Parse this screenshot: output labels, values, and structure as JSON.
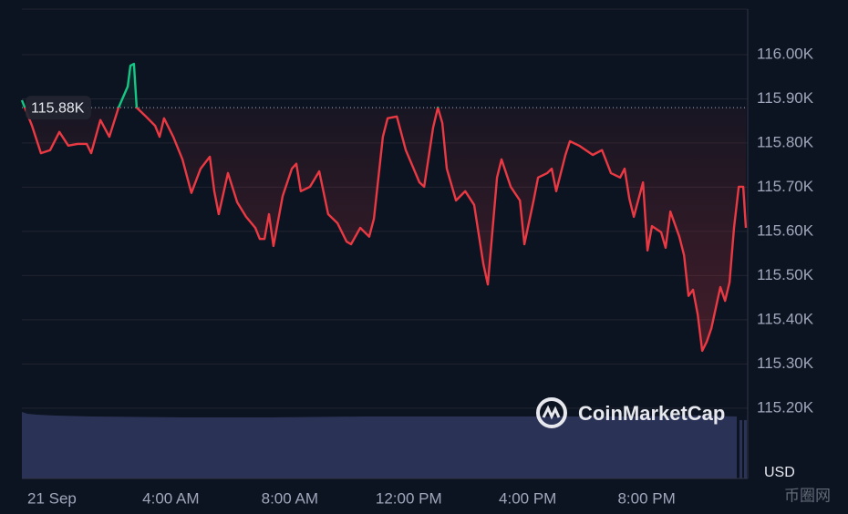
{
  "chart_data": {
    "type": "line",
    "x": [
      -1.01,
      -0.67,
      -0.37,
      -0.06,
      0.25,
      0.55,
      0.86,
      1.17,
      1.32,
      1.63,
      1.93,
      2.24,
      2.55,
      2.64,
      2.76,
      2.85,
      3.16,
      3.47,
      3.62,
      3.77,
      4.08,
      4.39,
      4.69,
      5.0,
      5.31,
      5.46,
      5.61,
      5.92,
      6.23,
      6.53,
      6.84,
      6.99,
      7.15,
      7.3,
      7.45,
      7.76,
      8.07,
      8.22,
      8.37,
      8.68,
      8.99,
      9.29,
      9.6,
      9.91,
      10.06,
      10.37,
      10.67,
      10.83,
      11.13,
      11.29,
      11.6,
      11.9,
      12.36,
      12.52,
      12.82,
      12.98,
      13.13,
      13.28,
      13.59,
      13.9,
      14.2,
      14.51,
      14.66,
      14.97,
      15.12,
      15.43,
      15.74,
      15.89,
      16.2,
      16.35,
      16.66,
      16.81,
      16.96,
      17.27,
      17.42,
      17.73,
      18.19,
      18.5,
      18.8,
      19.11,
      19.26,
      19.42,
      19.57,
      19.88,
      20.03,
      20.18,
      20.49,
      20.64,
      20.8,
      21.1,
      21.26,
      21.41,
      21.56,
      21.72,
      21.87,
      22.02,
      22.18,
      22.48,
      22.64,
      22.79,
      22.94,
      23.1,
      23.25,
      23.34
    ],
    "values": [
      115897,
      115839,
      115777,
      115784,
      115825,
      115794,
      115798,
      115798,
      115777,
      115852,
      115814,
      115880,
      115928,
      115975,
      115979,
      115880,
      115860,
      115839,
      115814,
      115856,
      115814,
      115763,
      115687,
      115742,
      115769,
      115691,
      115639,
      115732,
      115666,
      115633,
      115608,
      115583,
      115583,
      115639,
      115567,
      115680,
      115742,
      115753,
      115691,
      115701,
      115736,
      115639,
      115619,
      115577,
      115571,
      115608,
      115588,
      115629,
      115814,
      115856,
      115860,
      115784,
      115711,
      115701,
      115835,
      115880,
      115845,
      115742,
      115670,
      115691,
      115660,
      115526,
      115480,
      115722,
      115763,
      115701,
      115670,
      115571,
      115670,
      115722,
      115732,
      115742,
      115691,
      115773,
      115804,
      115794,
      115773,
      115784,
      115732,
      115722,
      115742,
      115674,
      115633,
      115711,
      115557,
      115612,
      115598,
      115563,
      115645,
      115588,
      115546,
      115454,
      115468,
      115412,
      115330,
      115350,
      115381,
      115474,
      115443,
      115485,
      115608,
      115701,
      115701,
      115608
    ],
    "up_color": "#16c784",
    "down_color": "#ea3943",
    "reference": {
      "value": 115880,
      "label": "115.88K"
    },
    "xlim": [
      -1.01,
      23.4
    ],
    "ylim": [
      115041,
      116103
    ],
    "xticks": [
      {
        "value": 0,
        "label": "21 Sep"
      },
      {
        "value": 4,
        "label": "4:00 AM"
      },
      {
        "value": 8,
        "label": "8:00 AM"
      },
      {
        "value": 12,
        "label": "12:00 PM"
      },
      {
        "value": 16,
        "label": "4:00 PM"
      },
      {
        "value": 20,
        "label": "8:00 PM"
      }
    ],
    "yticks": [
      {
        "value": 115200,
        "label": "115.20K"
      },
      {
        "value": 115300,
        "label": "115.30K"
      },
      {
        "value": 115400,
        "label": "115.40K"
      },
      {
        "value": 115500,
        "label": "115.50K"
      },
      {
        "value": 115600,
        "label": "115.60K"
      },
      {
        "value": 115700,
        "label": "115.70K"
      },
      {
        "value": 115800,
        "label": "115.80K"
      },
      {
        "value": 115900,
        "label": "115.90K"
      },
      {
        "value": 116000,
        "label": "116.00K"
      }
    ],
    "grid": true,
    "y_unit": "USD",
    "watermark": "CoinMarketCap",
    "source_watermark": "币圈网"
  }
}
